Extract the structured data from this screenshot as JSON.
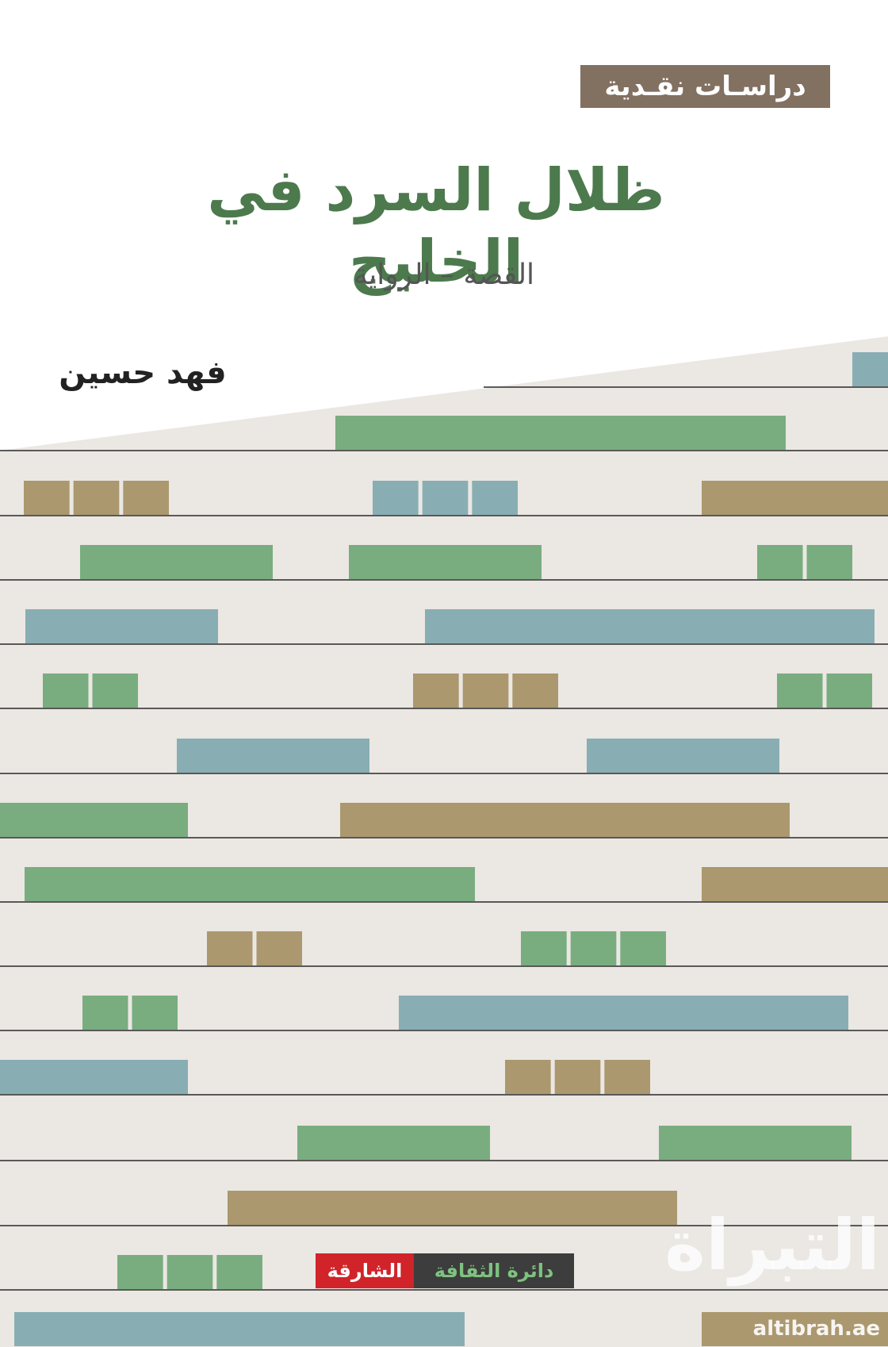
{
  "cover": {
    "series_label": "دراسـات نقـدية",
    "title": "ظلال السرد في الخليج",
    "subtitle": "القصة – الرواية",
    "author": "فهد حسين",
    "publisher": {
      "part_a": "دائرة الثقافة",
      "part_b": "الشارقة"
    },
    "watermark_logo": "التبراة",
    "watermark_url": "altibrah.ae"
  },
  "colors": {
    "title_green": "#4c7a4d",
    "series_tag_bg": "#827061",
    "background_band": "#ebe7e3",
    "bar_green": "#79ad7f",
    "bar_blue": "#88aeb3",
    "bar_tan": "#ab986f",
    "shelf_line": "#2a2a2a",
    "publisher_red": "#d1232a",
    "publisher_dark": "#3d3d3d"
  },
  "pattern": {
    "description_rows": 15
  }
}
